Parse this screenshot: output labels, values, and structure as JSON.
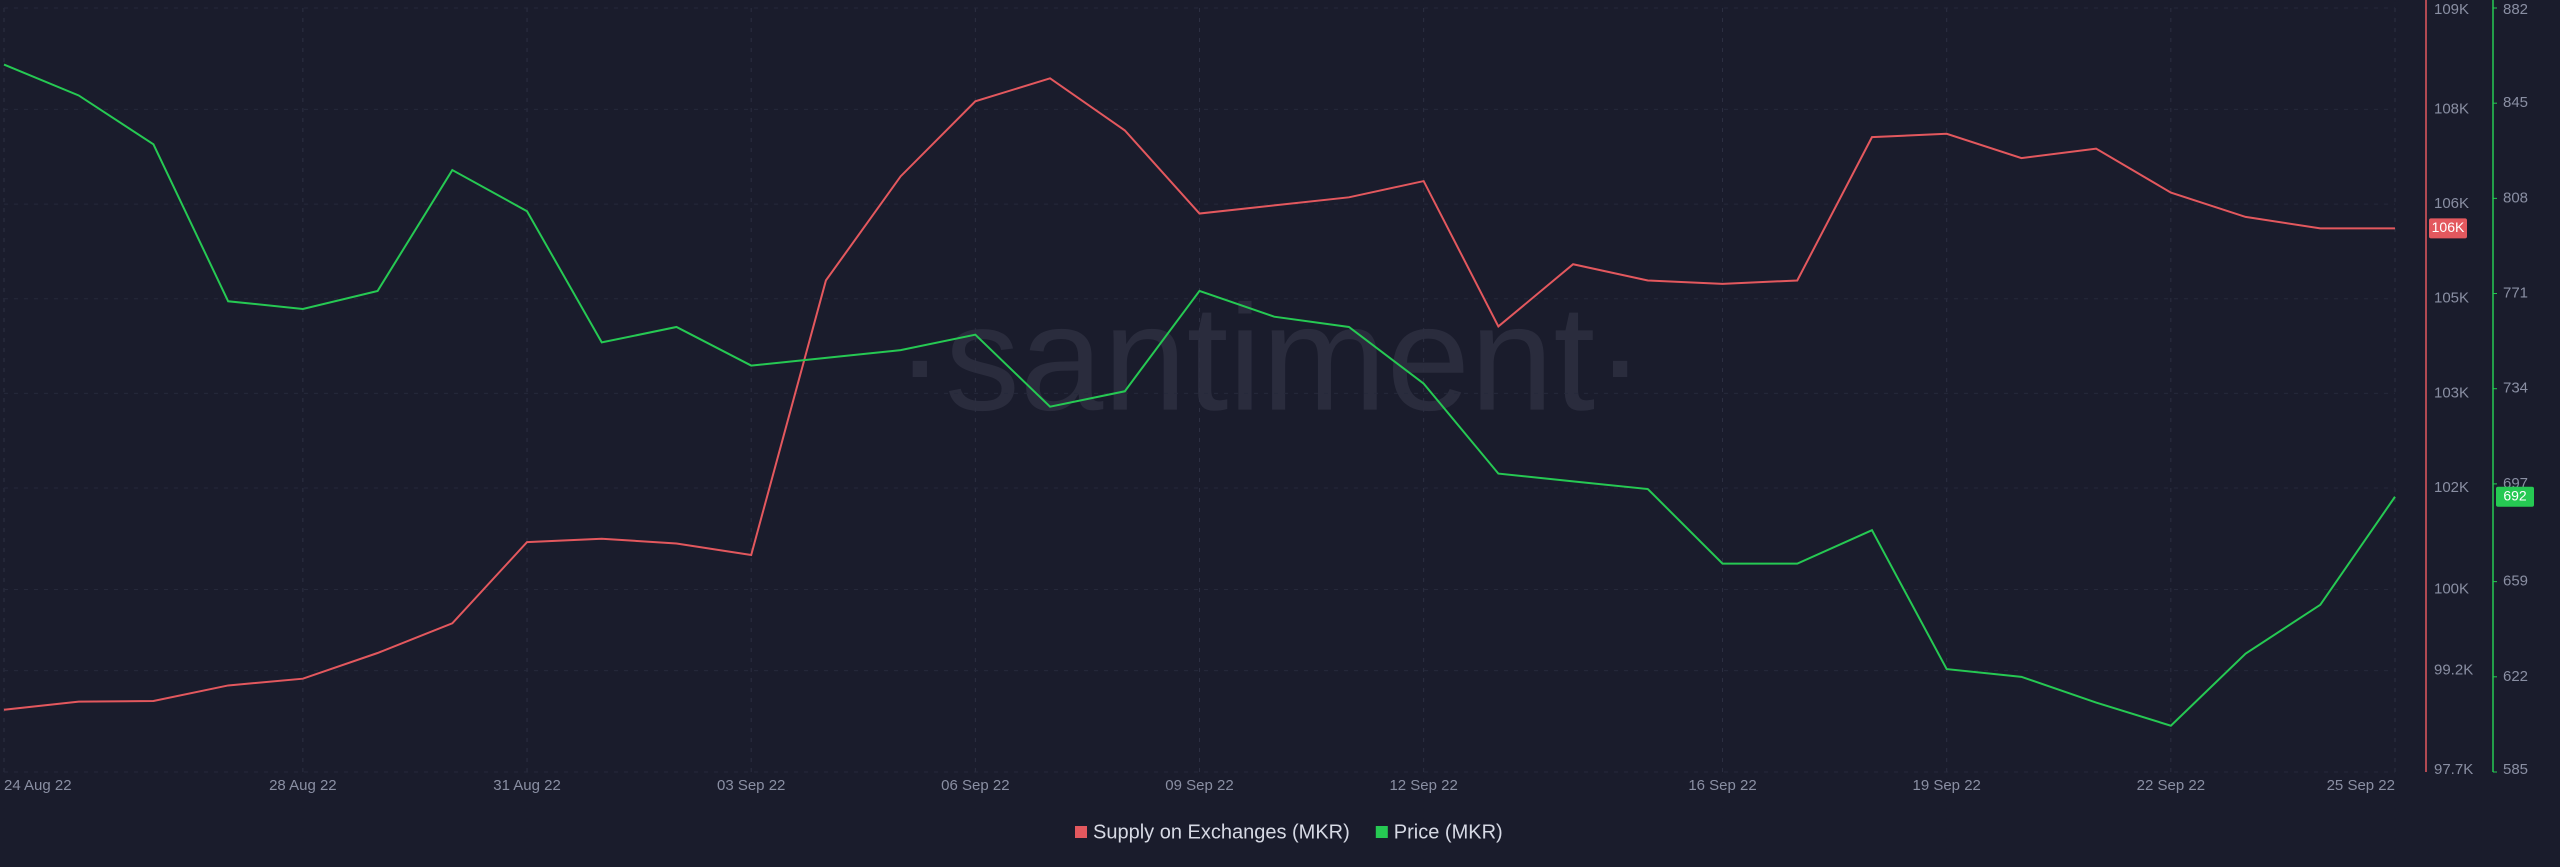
{
  "chart_data": {
    "type": "line",
    "watermark": "·santiment·",
    "x": [
      "24 Aug 22",
      "25 Aug 22",
      "26 Aug 22",
      "27 Aug 22",
      "28 Aug 22",
      "29 Aug 22",
      "30 Aug 22",
      "31 Aug 22",
      "01 Sep 22",
      "02 Sep 22",
      "03 Sep 22",
      "04 Sep 22",
      "05 Sep 22",
      "06 Sep 22",
      "07 Sep 22",
      "08 Sep 22",
      "09 Sep 22",
      "10 Sep 22",
      "11 Sep 22",
      "12 Sep 22",
      "13 Sep 22",
      "14 Sep 22",
      "15 Sep 22",
      "16 Sep 22",
      "17 Sep 22",
      "18 Sep 22",
      "19 Sep 22",
      "20 Sep 22",
      "21 Sep 22",
      "22 Sep 22",
      "23 Sep 22",
      "24 Sep 22",
      "25 Sep 22"
    ],
    "xticks": [
      "24 Aug 22",
      "28 Aug 22",
      "31 Aug 22",
      "03 Sep 22",
      "06 Sep 22",
      "09 Sep 22",
      "12 Sep 22",
      "16 Sep 22",
      "19 Sep 22",
      "22 Sep 22",
      "25 Sep 22"
    ],
    "ylim": [
      97700,
      109000
    ],
    "yticks": [
      {
        "value": 97700,
        "label": "97.7K"
      },
      {
        "value": 99200,
        "label": "99.2K"
      },
      {
        "value": 100400,
        "label": "100K"
      },
      {
        "value": 101900,
        "label": "102K"
      },
      {
        "value": 103300,
        "label": "103K"
      },
      {
        "value": 104700,
        "label": "105K"
      },
      {
        "value": 106100,
        "label": "106K"
      },
      {
        "value": 107500,
        "label": "108K"
      },
      {
        "value": 109000,
        "label": "109K"
      }
    ],
    "y2lim": [
      585,
      882
    ],
    "y2ticks": [
      585,
      622,
      659,
      697,
      734,
      771,
      808,
      845,
      882
    ],
    "grid": true,
    "series": [
      {
        "name": "Supply on Exchanges (MKR)",
        "color": "#e3585e",
        "axis": "y",
        "last_value_label": "106K",
        "values": [
          98620,
          98740,
          98750,
          98980,
          99080,
          99460,
          99900,
          101100,
          101150,
          101080,
          100910,
          104970,
          106510,
          107620,
          107960,
          107190,
          105960,
          106080,
          106200,
          106440,
          104290,
          105210,
          104970,
          104920,
          104970,
          107090,
          107140,
          106780,
          106920,
          106270,
          105910,
          105740,
          105740
        ]
      },
      {
        "name": "Price (MKR)",
        "color": "#26c953",
        "axis": "y2",
        "last_value_label": "692",
        "values": [
          860,
          848,
          829,
          768,
          765,
          772,
          819,
          803,
          752,
          758,
          743,
          746,
          749,
          755,
          727,
          733,
          772,
          762,
          758,
          736,
          701,
          698,
          695,
          666,
          666,
          679,
          625,
          622,
          612,
          603,
          631,
          650,
          692
        ]
      }
    ]
  }
}
